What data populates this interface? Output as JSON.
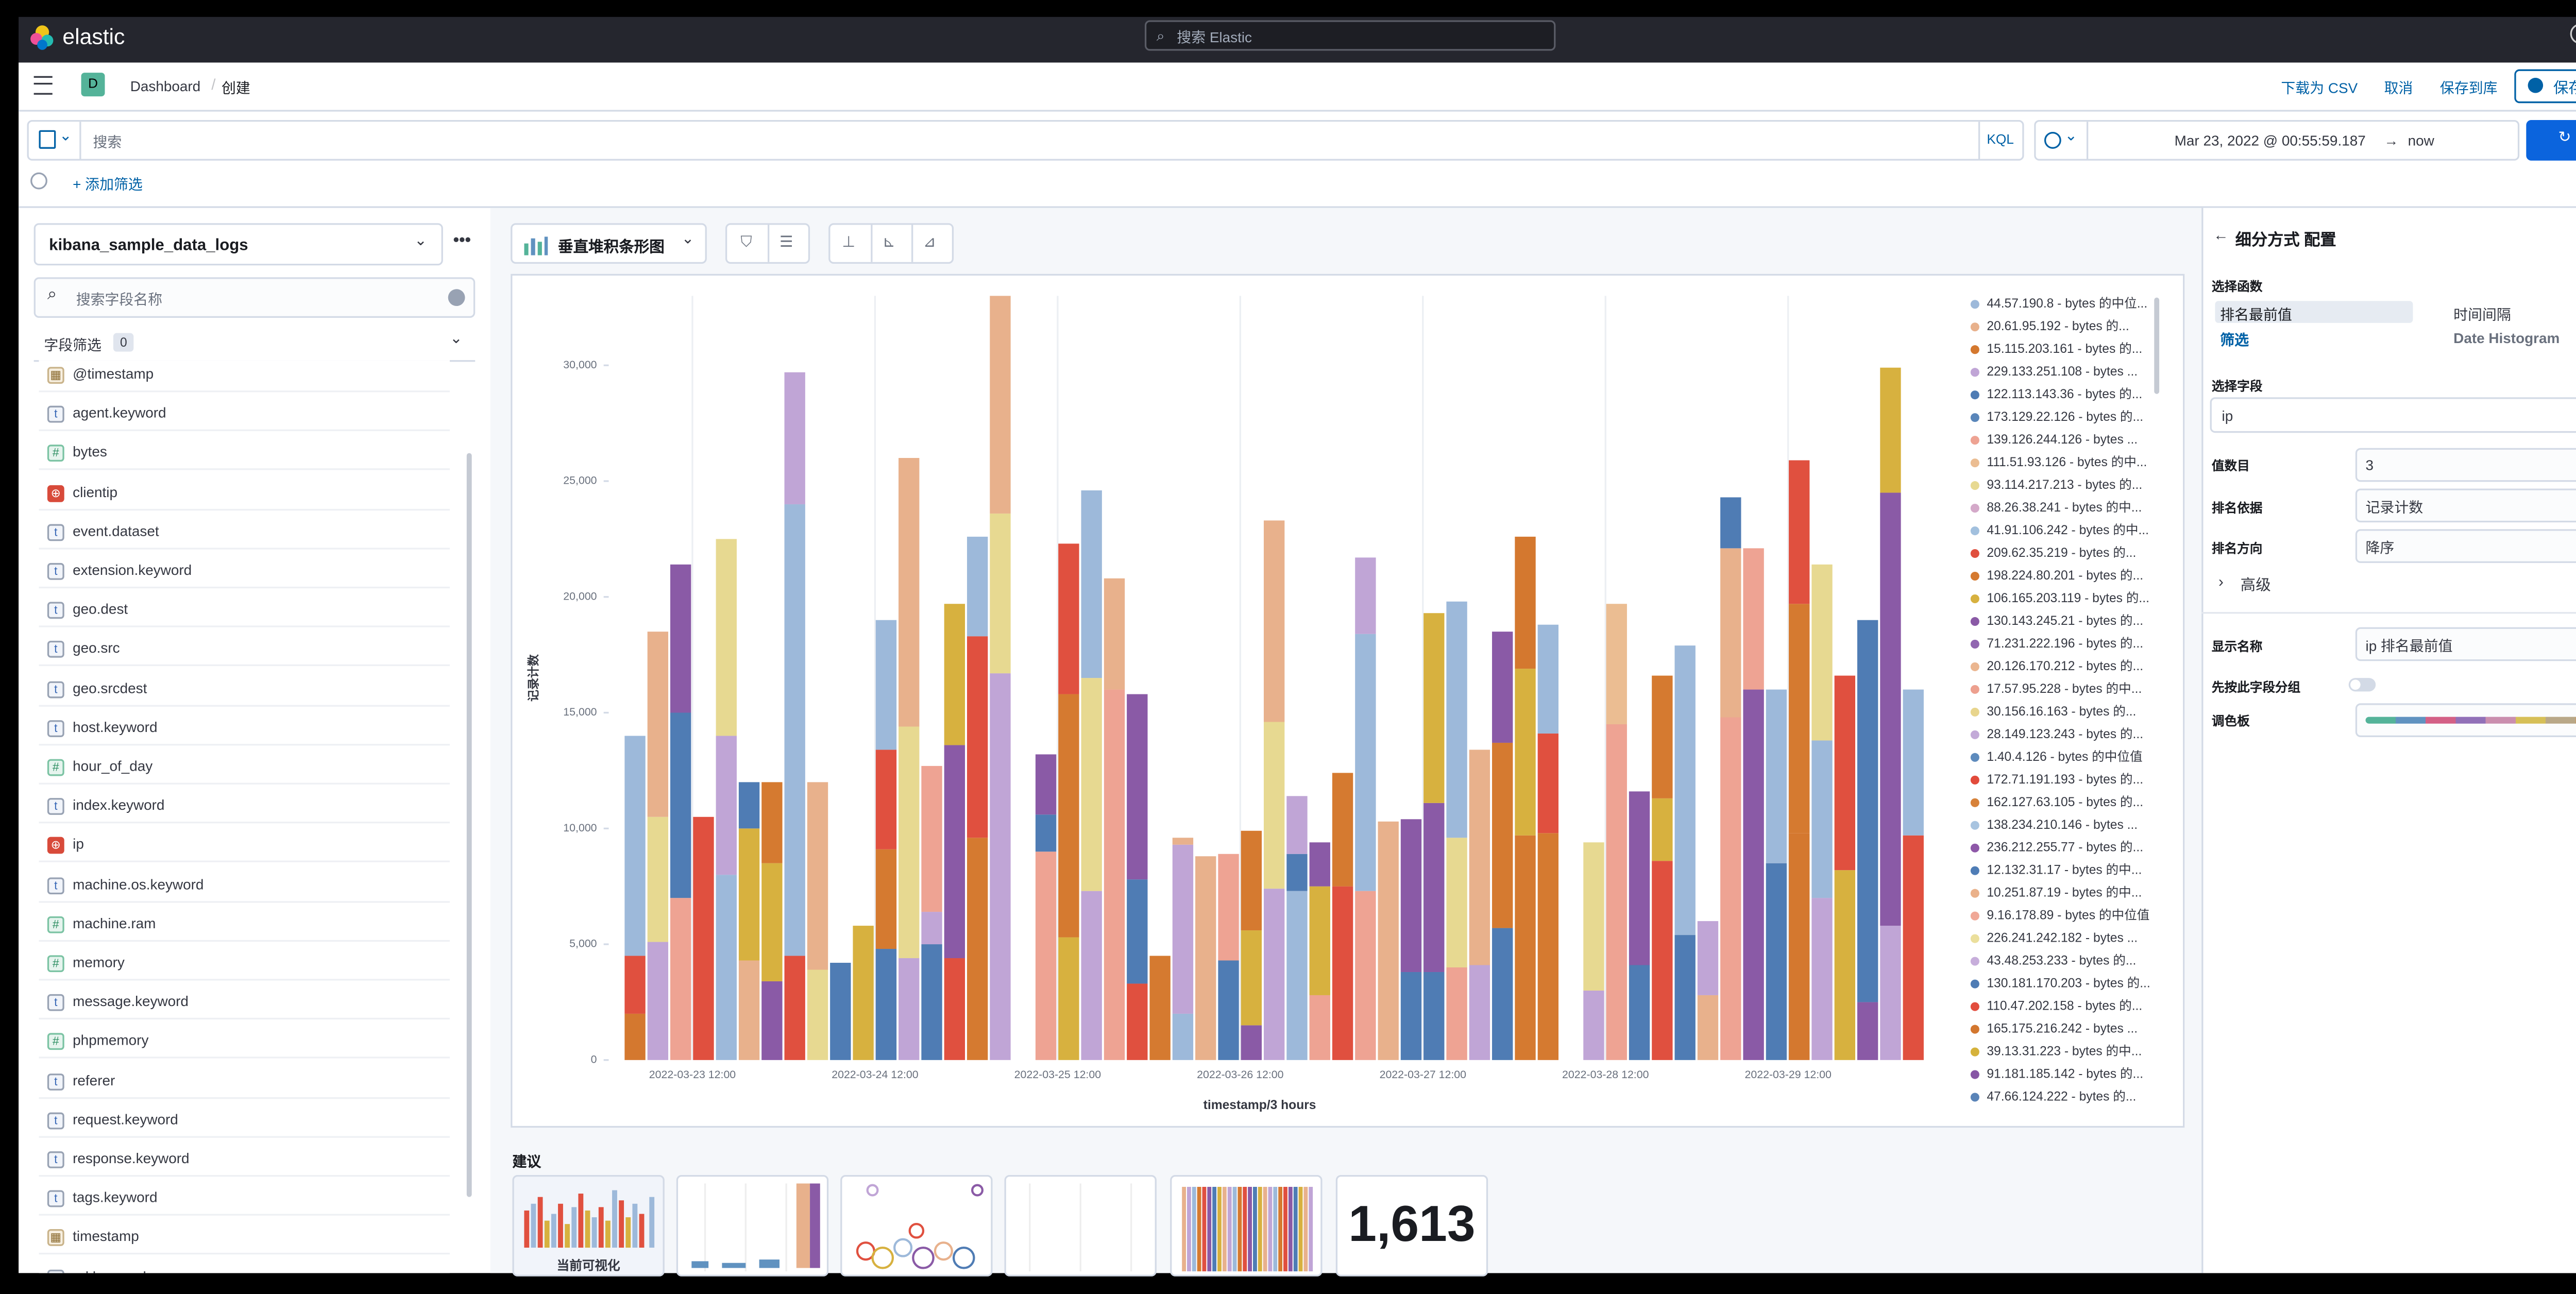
{
  "header": {
    "brand": "elastic",
    "search": "搜索 Elastic"
  },
  "nav": {
    "badge": "D",
    "breadcrumbs": [
      "Dashboard",
      "创建"
    ],
    "actions": [
      "下载为 CSV",
      "取消",
      "保存到库"
    ],
    "primary": "保存并返回"
  },
  "query": {
    "placeholder": "搜索",
    "language": "KQL",
    "start": "Mar 23, 2022 @ 00:55:59.187",
    "arrow": "→",
    "end": "now",
    "refresh": "刷新",
    "add_filter": "+ 添加筛选"
  },
  "sidebar": {
    "index": "kibana_sample_data_logs",
    "search": "搜索字段名称",
    "filter": "字段筛选",
    "filter_count": "0",
    "fields": [
      {
        "icon": "▦",
        "name": "@timestamp"
      },
      {
        "icon": "t",
        "name": "agent.keyword"
      },
      {
        "icon": "#",
        "name": "bytes"
      },
      {
        "icon": "⊕",
        "name": "clientip"
      },
      {
        "icon": "t",
        "name": "event.dataset"
      },
      {
        "icon": "t",
        "name": "extension.keyword"
      },
      {
        "icon": "t",
        "name": "geo.dest"
      },
      {
        "icon": "t",
        "name": "geo.src"
      },
      {
        "icon": "t",
        "name": "geo.srcdest"
      },
      {
        "icon": "t",
        "name": "host.keyword"
      },
      {
        "icon": "#",
        "name": "hour_of_day"
      },
      {
        "icon": "t",
        "name": "index.keyword"
      },
      {
        "icon": "⊕",
        "name": "ip"
      },
      {
        "icon": "t",
        "name": "machine.os.keyword"
      },
      {
        "icon": "#",
        "name": "machine.ram"
      },
      {
        "icon": "#",
        "name": "memory"
      },
      {
        "icon": "t",
        "name": "message.keyword"
      },
      {
        "icon": "#",
        "name": "phpmemory"
      },
      {
        "icon": "t",
        "name": "referer"
      },
      {
        "icon": "t",
        "name": "request.keyword"
      },
      {
        "icon": "t",
        "name": "response.keyword"
      },
      {
        "icon": "t",
        "name": "tags.keyword"
      },
      {
        "icon": "▦",
        "name": "timestamp"
      },
      {
        "icon": "t",
        "name": "url.keyword"
      }
    ]
  },
  "workspace": {
    "chart_type": "垂直堆积条形图",
    "suggestions_title": "建议",
    "suggestions": [
      "当前可视化",
      "1,613"
    ]
  },
  "chart_data": {
    "type": "bar",
    "stacked": true,
    "y_label": "记录计数",
    "x_label": "timestamp/3 hours",
    "xgrid": true,
    "ylim": [
      0,
      33000
    ],
    "yticks": [
      0,
      {
        "value": 5000,
        "label": "5,000"
      },
      {
        "value": 10000,
        "label": "10,000"
      },
      {
        "value": 15000,
        "label": "15,000"
      },
      {
        "value": 20000,
        "label": "20,000"
      },
      {
        "value": 25000,
        "label": "25,000"
      },
      {
        "value": 30000,
        "label": "30,000"
      }
    ],
    "categories": [
      null,
      null,
      null,
      "2022-03-23 12:00",
      null,
      null,
      null,
      null,
      null,
      null,
      null,
      "2022-03-24 12:00",
      null,
      null,
      null,
      null,
      null,
      null,
      null,
      "2022-03-25 12:00",
      null,
      null,
      null,
      null,
      null,
      null,
      null,
      "2022-03-26 12:00",
      null,
      null,
      null,
      null,
      null,
      null,
      null,
      "2022-03-27 12:00",
      null,
      null,
      null,
      null,
      null,
      null,
      null,
      "2022-03-28 12:00",
      null,
      null,
      null,
      null,
      null,
      null,
      null,
      "2022-03-29 12:00",
      null,
      null,
      null,
      null,
      null
    ],
    "series": [
      {
        "name": "44.57.190.8 - bytes 的中位...",
        "color": "#9db9da"
      },
      {
        "name": "20.61.95.192 - bytes 的...",
        "color": "#e8b18c"
      },
      {
        "name": "15.115.203.161 - bytes 的...",
        "color": "#d4782f"
      },
      {
        "name": "229.133.251.108 - bytes ...",
        "color": "#c0a5d6"
      },
      {
        "name": "122.113.143.36 - bytes 的...",
        "color": "#4f7cb4"
      },
      {
        "name": "173.129.22.126 - bytes 的...",
        "color": "#5a86ba"
      },
      {
        "name": "139.126.244.126 - bytes ...",
        "color": "#eea393"
      },
      {
        "name": "111.51.93.126 - bytes 的中...",
        "color": "#ebbd92"
      },
      {
        "name": "93.114.217.213 - bytes 的...",
        "color": "#e7d991"
      },
      {
        "name": "88.26.38.241 - bytes 的中...",
        "color": "#d4a9c9"
      },
      {
        "name": "41.91.106.242 - bytes 的中...",
        "color": "#a2c0de"
      },
      {
        "name": "209.62.35.219 - bytes 的...",
        "color": "#e0503f"
      },
      {
        "name": "198.224.80.201 - bytes 的...",
        "color": "#d57a30"
      },
      {
        "name": "106.165.203.119 - bytes 的...",
        "color": "#d7b13f"
      },
      {
        "name": "130.143.245.21 - bytes 的...",
        "color": "#8a5aa6"
      },
      {
        "name": "71.231.222.196 - bytes 的...",
        "color": "#9166b0"
      },
      {
        "name": "20.126.170.212 - bytes 的...",
        "color": "#ebb690"
      },
      {
        "name": "17.57.95.228 - bytes 的中...",
        "color": "#eda08f"
      },
      {
        "name": "30.156.16.163 - bytes 的...",
        "color": "#e8d58d"
      },
      {
        "name": "28.149.123.243 - bytes 的...",
        "color": "#c3aad8"
      },
      {
        "name": "1.40.4.126 - bytes 的中位值",
        "color": "#5e8bbd"
      },
      {
        "name": "172.71.191.193 - bytes 的...",
        "color": "#e24b3b"
      },
      {
        "name": "162.127.63.105 - bytes 的...",
        "color": "#d7823a"
      },
      {
        "name": "138.234.210.146 - bytes ...",
        "color": "#a8c4e0"
      },
      {
        "name": "236.212.255.77 - bytes 的...",
        "color": "#8e58a8"
      },
      {
        "name": "12.132.31.17 - bytes 的中...",
        "color": "#4f7db6"
      },
      {
        "name": "10.251.87.19 - bytes 的中...",
        "color": "#eab18a"
      },
      {
        "name": "9.16.178.89 - bytes 的中位值",
        "color": "#f0a897"
      },
      {
        "name": "226.241.242.182 - bytes ...",
        "color": "#ebdf9c"
      },
      {
        "name": "43.48.253.233 - bytes 的...",
        "color": "#c7aedb"
      },
      {
        "name": "130.181.170.203 - bytes 的...",
        "color": "#4f7cb4"
      },
      {
        "name": "110.47.202.158 - bytes 的...",
        "color": "#e24d3e"
      },
      {
        "name": "165.175.216.242 - bytes ...",
        "color": "#d3772f"
      },
      {
        "name": "39.13.31.223 - bytes 的中...",
        "color": "#d5b23c"
      },
      {
        "name": "91.181.185.142 - bytes 的...",
        "color": "#8756a5"
      },
      {
        "name": "47.66.124.222 - bytes 的...",
        "color": "#5a84b8"
      }
    ],
    "stacks": [
      [
        [
          2,
          2000
        ],
        [
          11,
          2500
        ],
        [
          0,
          9500
        ]
      ],
      [
        [
          3,
          5100
        ],
        [
          8,
          5400
        ],
        [
          1,
          8000
        ]
      ],
      [
        [
          6,
          7000
        ],
        [
          4,
          8000
        ],
        [
          14,
          6400
        ]
      ],
      [
        [
          11,
          10500
        ]
      ],
      [
        [
          0,
          8000
        ],
        [
          3,
          6000
        ],
        [
          8,
          8500
        ]
      ],
      [
        [
          1,
          4300
        ],
        [
          13,
          5700
        ],
        [
          4,
          2000
        ]
      ],
      [
        [
          14,
          3400
        ],
        [
          13,
          5100
        ],
        [
          12,
          3500
        ]
      ],
      [
        [
          11,
          4500
        ],
        [
          0,
          19500
        ],
        [
          3,
          5700
        ]
      ],
      [
        [
          8,
          3900
        ],
        [
          1,
          8100
        ]
      ],
      [
        [
          4,
          4200
        ]
      ],
      [
        [
          13,
          5800
        ]
      ],
      [
        [
          4,
          4800
        ],
        [
          12,
          4300
        ],
        [
          11,
          4300
        ],
        [
          0,
          5600
        ]
      ],
      [
        [
          3,
          4400
        ],
        [
          8,
          10000
        ],
        [
          1,
          11600
        ]
      ],
      [
        [
          4,
          5000
        ],
        [
          3,
          1400
        ],
        [
          6,
          6300
        ]
      ],
      [
        [
          11,
          4400
        ],
        [
          14,
          9200
        ],
        [
          13,
          6100
        ]
      ],
      [
        [
          12,
          9600
        ],
        [
          11,
          8700
        ],
        [
          0,
          4300
        ]
      ],
      [
        [
          3,
          16700
        ],
        [
          8,
          6900
        ],
        [
          1,
          9400
        ]
      ],
      [],
      [
        [
          6,
          9000
        ],
        [
          4,
          1600
        ],
        [
          14,
          2600
        ]
      ],
      [
        [
          13,
          5300
        ],
        [
          12,
          10500
        ],
        [
          11,
          6500
        ]
      ],
      [
        [
          3,
          7300
        ],
        [
          8,
          9200
        ],
        [
          0,
          8100
        ]
      ],
      [
        [
          6,
          16000
        ],
        [
          1,
          4800
        ]
      ],
      [
        [
          11,
          3300
        ],
        [
          4,
          4500
        ],
        [
          14,
          8000
        ]
      ],
      [
        [
          12,
          4500
        ]
      ],
      [
        [
          0,
          2000
        ],
        [
          3,
          7300
        ],
        [
          1,
          300
        ]
      ],
      [
        [
          1,
          8800
        ]
      ],
      [
        [
          4,
          4300
        ],
        [
          6,
          4600
        ]
      ],
      [
        [
          14,
          1500
        ],
        [
          13,
          4100
        ],
        [
          12,
          4300
        ]
      ],
      [
        [
          3,
          7400
        ],
        [
          8,
          7200
        ],
        [
          1,
          8700
        ]
      ],
      [
        [
          0,
          7300
        ],
        [
          4,
          1600
        ],
        [
          3,
          2500
        ]
      ],
      [
        [
          6,
          2800
        ],
        [
          13,
          4700
        ],
        [
          14,
          1900
        ]
      ],
      [
        [
          11,
          7500
        ],
        [
          12,
          4900
        ]
      ],
      [
        [
          6,
          7300
        ],
        [
          0,
          11100
        ],
        [
          3,
          3300
        ]
      ],
      [
        [
          1,
          10300
        ]
      ],
      [
        [
          4,
          3800
        ],
        [
          14,
          6600
        ]
      ],
      [
        [
          4,
          3800
        ],
        [
          14,
          7300
        ],
        [
          13,
          8200
        ]
      ],
      [
        [
          6,
          4000
        ],
        [
          8,
          5600
        ],
        [
          0,
          10200
        ]
      ],
      [
        [
          3,
          4100
        ],
        [
          1,
          9300
        ]
      ],
      [
        [
          4,
          5700
        ],
        [
          12,
          8000
        ],
        [
          14,
          4800
        ]
      ],
      [
        [
          12,
          9700
        ],
        [
          13,
          7200
        ],
        [
          2,
          5700
        ]
      ],
      [
        [
          12,
          9800
        ],
        [
          11,
          4300
        ],
        [
          0,
          4700
        ]
      ],
      [],
      [
        [
          3,
          3000
        ],
        [
          8,
          6400
        ]
      ],
      [
        [
          6,
          14500
        ],
        [
          7,
          5200
        ]
      ],
      [
        [
          4,
          4100
        ],
        [
          14,
          7500
        ]
      ],
      [
        [
          11,
          8600
        ],
        [
          13,
          2700
        ],
        [
          12,
          5300
        ]
      ],
      [
        [
          4,
          5400
        ],
        [
          0,
          12500
        ]
      ],
      [
        [
          1,
          2800
        ],
        [
          3,
          3200
        ]
      ],
      [
        [
          6,
          14800
        ],
        [
          1,
          7300
        ],
        [
          4,
          2200
        ]
      ],
      [
        [
          14,
          16000
        ],
        [
          6,
          6100
        ]
      ],
      [
        [
          4,
          8500
        ],
        [
          0,
          7500
        ]
      ],
      [
        [
          2,
          9800
        ],
        [
          12,
          9900
        ],
        [
          11,
          6200
        ]
      ],
      [
        [
          3,
          7000
        ],
        [
          0,
          6800
        ],
        [
          8,
          7600
        ]
      ],
      [
        [
          13,
          8200
        ],
        [
          11,
          8400
        ]
      ],
      [
        [
          14,
          2500
        ],
        [
          4,
          16500
        ]
      ],
      [
        [
          3,
          5800
        ],
        [
          14,
          18700
        ],
        [
          13,
          5400
        ]
      ],
      [
        [
          11,
          9700
        ],
        [
          0,
          6300
        ]
      ]
    ]
  },
  "panel": {
    "title": "细分方式 配置",
    "function_label": "选择函数",
    "functions": [
      "排名最前值",
      "时间间隔",
      "筛选",
      "Date Histogram"
    ],
    "field_label": "选择字段",
    "field": "ip",
    "count_label": "值数目",
    "count": "3",
    "rank_by_label": "排名依据",
    "rank_by": "记录计数",
    "direction_label": "排名方向",
    "direction": "降序",
    "advanced": "高级",
    "display_name_label": "显示名称",
    "display_name": "ip 排名最前值",
    "group_label": "先按此字段分组",
    "palette_label": "调色板"
  }
}
